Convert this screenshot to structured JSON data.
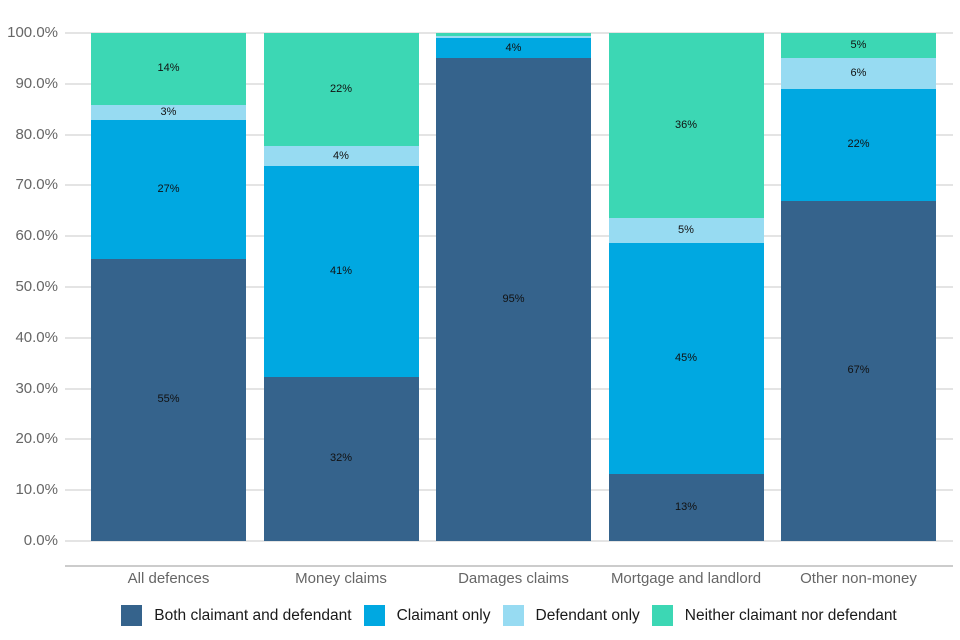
{
  "chart_data": {
    "type": "bar",
    "variant": "stacked-percentage",
    "title": "",
    "categories": [
      "All defences",
      "Money claims",
      "Damages claims",
      "Mortgage and landlord",
      "Other non-money"
    ],
    "series": [
      {
        "name": "Both claimant and defendant",
        "color": "#35638C",
        "values": [
          55,
          32,
          95,
          13,
          67
        ],
        "labels": [
          "55%",
          "32%",
          "95%",
          "13%",
          "67%"
        ]
      },
      {
        "name": "Claimant only",
        "color": "#00A8E1",
        "values": [
          27,
          41,
          4,
          45,
          22
        ],
        "labels": [
          "27%",
          "41%",
          "4%",
          "45%",
          "22%"
        ]
      },
      {
        "name": "Defendant only",
        "color": "#97DBF2",
        "values": [
          3,
          4,
          0.5,
          5,
          6
        ],
        "labels": [
          "3%",
          "4%",
          "",
          "5%",
          "6%"
        ]
      },
      {
        "name": "Neither claimant nor defendant",
        "color": "#3CD7B4",
        "values": [
          14,
          22,
          0.5,
          36,
          5
        ],
        "labels": [
          "14%",
          "22%",
          "",
          "36%",
          "5%"
        ]
      }
    ],
    "y_axis": {
      "ticks": [
        "100.0%",
        "90.0%",
        "80.0%",
        "70.0%",
        "60.0%",
        "50.0%",
        "40.0%",
        "30.0%",
        "20.0%",
        "10.0%",
        "0.0%"
      ],
      "min": 0,
      "max": 100,
      "step": 10
    },
    "grid": true,
    "legend_position": "bottom"
  },
  "style": {
    "grid_color": "#E4E4E4",
    "axis_line_color": "#CCCCCC",
    "axis_text_color": "#666666",
    "bar_label_color": "#111111",
    "legend_text_color": "#1A1A1A",
    "background": "#FFFFFF"
  }
}
